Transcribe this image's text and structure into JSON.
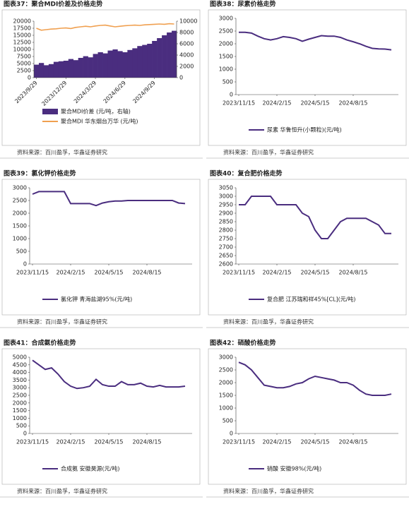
{
  "chart_data": [
    {
      "type": "bar-line",
      "title": "图表37：聚合MDI价差及价格走势",
      "source": "资料来源：百川盈孚，华鑫证券研究",
      "categories": [
        "2023/9/29",
        null,
        null,
        null,
        null,
        null,
        "2023/12/29",
        null,
        null,
        null,
        null,
        null,
        "2024/3/29",
        null,
        null,
        null,
        null,
        null,
        "2024/6/29",
        null,
        null,
        null,
        null,
        null,
        "2024/9/29",
        null,
        null,
        null,
        null
      ],
      "ylim": [
        0,
        20000
      ],
      "yticks": [
        0,
        2500,
        5000,
        7500,
        10000,
        12500,
        15000,
        17500,
        20000
      ],
      "y2lim": [
        0,
        10000
      ],
      "y2ticks": [
        0,
        2000,
        4000,
        6000,
        8000,
        10000
      ],
      "series": [
        {
          "name": "聚合MDI价差 (元/吨，右轴)",
          "color": "#4a2d7f",
          "axis": "y2",
          "kind": "bar",
          "values": [
            2300,
            2600,
            2200,
            2400,
            2800,
            2900,
            3000,
            3300,
            3100,
            3500,
            3800,
            3600,
            4200,
            4500,
            4300,
            4800,
            5000,
            4700,
            4500,
            4900,
            5200,
            5600,
            5800,
            6000,
            6500,
            7000,
            7500,
            8000,
            8300
          ]
        },
        {
          "name": "聚合MDI 华东烟台万华 (元/吨)",
          "color": "#f0a050",
          "kind": "line",
          "values": [
            17500,
            16800,
            17000,
            17200,
            17300,
            17500,
            17600,
            17400,
            17800,
            18000,
            18200,
            18000,
            18300,
            18500,
            18600,
            18300,
            18000,
            18200,
            18400,
            18500,
            18600,
            18500,
            18700,
            18800,
            18900,
            19000,
            18900,
            19100,
            19000
          ]
        }
      ]
    },
    {
      "type": "line",
      "title": "图表38：尿素价格走势",
      "source": "资料来源：百川盈孚，华鑫证券研究",
      "categories": [
        "2023/11/15",
        null,
        null,
        null,
        null,
        null,
        "2024/2/15",
        null,
        null,
        null,
        null,
        null,
        "2024/5/15",
        null,
        null,
        null,
        null,
        null,
        "2024/8/15",
        null,
        null,
        null,
        null,
        null,
        null
      ],
      "ylim": [
        0,
        3000
      ],
      "yticks": [
        0,
        500,
        1000,
        1500,
        2000,
        2500,
        3000
      ],
      "series": [
        {
          "name": "尿素 华鲁恒升(小颗粒)(元/吨)",
          "color": "#4a2d7f",
          "values": [
            2450,
            2450,
            2420,
            2300,
            2200,
            2150,
            2200,
            2280,
            2250,
            2200,
            2100,
            2180,
            2250,
            2320,
            2300,
            2300,
            2250,
            2150,
            2080,
            2000,
            1900,
            1820,
            1800,
            1790,
            1760
          ]
        }
      ]
    },
    {
      "type": "line",
      "title": "图表39：氯化钾价格走势",
      "source": "资料来源：百川盈孚，华鑫证券研究",
      "categories": [
        "2023/11/15",
        null,
        null,
        null,
        null,
        null,
        "2024/2/15",
        null,
        null,
        null,
        null,
        null,
        "2024/5/15",
        null,
        null,
        null,
        null,
        null,
        "2024/8/15",
        null,
        null,
        null,
        null,
        null,
        null
      ],
      "ylim": [
        0,
        3000
      ],
      "yticks": [
        0,
        500,
        1000,
        1500,
        2000,
        2500,
        3000
      ],
      "series": [
        {
          "name": "氯化钾 青海盐湖95%(元/吨)",
          "color": "#4a2d7f",
          "values": [
            2750,
            2850,
            2850,
            2850,
            2850,
            2850,
            2380,
            2380,
            2380,
            2380,
            2300,
            2400,
            2450,
            2480,
            2480,
            2500,
            2500,
            2500,
            2500,
            2500,
            2500,
            2500,
            2500,
            2400,
            2380
          ]
        }
      ]
    },
    {
      "type": "line",
      "title": "图表40：复合肥价格走势",
      "source": "资料来源：百川盈孚，华鑫证券研究",
      "categories": [
        "2023/11/15",
        null,
        null,
        null,
        null,
        null,
        "2024/2/15",
        null,
        null,
        null,
        null,
        null,
        "2024/5/15",
        null,
        null,
        null,
        null,
        null,
        "2024/8/15",
        null,
        null,
        null,
        null,
        null,
        null
      ],
      "ylim": [
        2600,
        3050
      ],
      "yticks": [
        2600,
        2650,
        2700,
        2750,
        2800,
        2850,
        2900,
        2950,
        3000,
        3050
      ],
      "series": [
        {
          "name": "复合肥 江苏瑞和祥45%[CL](元/吨)",
          "color": "#4a2d7f",
          "values": [
            2950,
            2950,
            3000,
            3000,
            3000,
            3000,
            2950,
            2950,
            2950,
            2950,
            2900,
            2880,
            2800,
            2750,
            2750,
            2800,
            2850,
            2870,
            2870,
            2870,
            2870,
            2850,
            2830,
            2780,
            2780
          ]
        }
      ]
    },
    {
      "type": "line",
      "title": "图表41：合成氨价格走势",
      "source": "资料来源：百川盈孚，华鑫证券研究",
      "categories": [
        "2023/11/15",
        null,
        null,
        null,
        null,
        null,
        "2024/2/15",
        null,
        null,
        null,
        null,
        null,
        "2024/5/15",
        null,
        null,
        null,
        null,
        null,
        "2024/8/15",
        null,
        null,
        null,
        null,
        null,
        null
      ],
      "ylim": [
        0,
        5000
      ],
      "yticks": [
        0,
        500,
        1000,
        1500,
        2000,
        2500,
        3000,
        3500,
        4000,
        4500,
        5000
      ],
      "series": [
        {
          "name": "合成氨 安徽昊源(元/吨)",
          "color": "#4a2d7f",
          "values": [
            4800,
            4500,
            4200,
            4300,
            3900,
            3400,
            3100,
            2950,
            3000,
            3100,
            3550,
            3200,
            3100,
            3100,
            3400,
            3200,
            3200,
            3300,
            3100,
            3050,
            3150,
            3050,
            3050,
            3050,
            3100
          ]
        }
      ]
    },
    {
      "type": "line",
      "title": "图表42：硝酸价格走势",
      "source": "资料来源：百川盈孚，华鑫证券研究",
      "categories": [
        "2023/11/15",
        null,
        null,
        null,
        null,
        null,
        "2024/2/15",
        null,
        null,
        null,
        null,
        null,
        "2024/5/15",
        null,
        null,
        null,
        null,
        null,
        "2024/8/15",
        null,
        null,
        null,
        null,
        null,
        null
      ],
      "ylim": [
        0,
        3000
      ],
      "yticks": [
        0,
        500,
        1000,
        1500,
        2000,
        2500,
        3000
      ],
      "series": [
        {
          "name": "硝酸 安徽98%(元/吨)",
          "color": "#4a2d7f",
          "values": [
            2800,
            2700,
            2500,
            2200,
            1900,
            1850,
            1800,
            1800,
            1850,
            1950,
            2000,
            2150,
            2250,
            2200,
            2150,
            2100,
            2000,
            2000,
            1900,
            1700,
            1550,
            1500,
            1500,
            1500,
            1550
          ]
        }
      ]
    }
  ]
}
